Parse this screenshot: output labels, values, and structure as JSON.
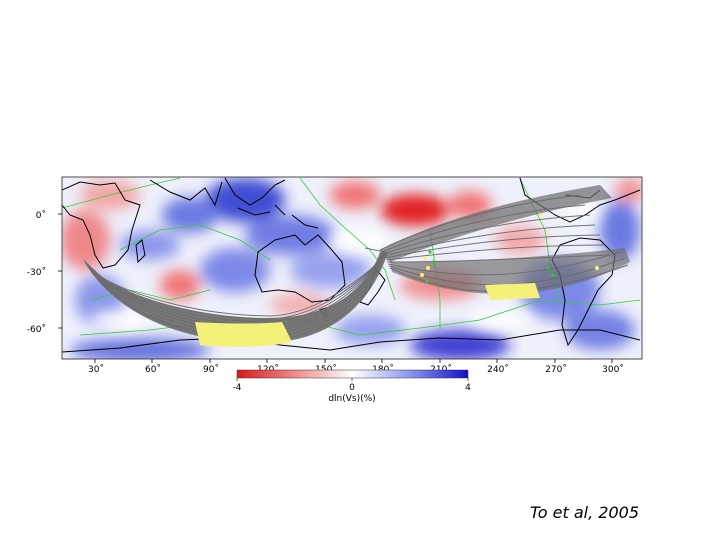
{
  "map": {
    "lat_labels": [
      "0˚",
      "-30˚",
      "-60˚"
    ],
    "lon_labels": [
      "30˚",
      "60˚",
      "90˚",
      "120˚",
      "150˚",
      "180˚",
      "210˚",
      "240˚",
      "270˚",
      "300˚"
    ],
    "colors": {
      "slow_anomaly": "#e41a1c",
      "fast_anomaly": "#1f3fd0",
      "neutral": "#ffffff",
      "ray_paths": "#666666",
      "sampling_region": "#f5f07a",
      "plate_boundaries": "#33cc33",
      "coastlines": "#000000"
    }
  },
  "colorbar": {
    "min_label": "-4",
    "mid_label": "0",
    "max_label": "4",
    "title": "dln(Vs)(%)"
  },
  "citation": "To et al, 2005"
}
